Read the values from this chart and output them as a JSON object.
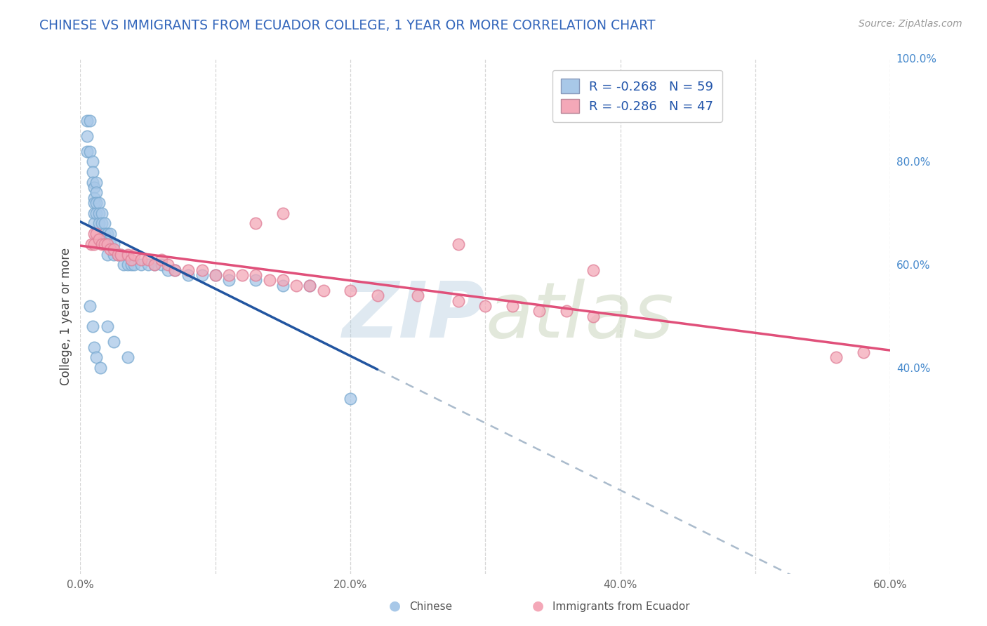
{
  "title": "CHINESE VS IMMIGRANTS FROM ECUADOR COLLEGE, 1 YEAR OR MORE CORRELATION CHART",
  "source_text": "Source: ZipAtlas.com",
  "ylabel": "College, 1 year or more",
  "legend_labels": [
    "Chinese",
    "Immigrants from Ecuador"
  ],
  "legend_r": [
    -0.268,
    -0.286
  ],
  "legend_n": [
    59,
    47
  ],
  "xlim": [
    0.0,
    0.6
  ],
  "ylim": [
    0.0,
    1.0
  ],
  "blue_color": "#a8c8e8",
  "pink_color": "#f4a8b8",
  "blue_edge_color": "#7aaad0",
  "pink_edge_color": "#e08098",
  "blue_line_color": "#2255a0",
  "pink_line_color": "#e0507a",
  "dash_color": "#aabbcc",
  "background_color": "#ffffff",
  "chinese_x": [
    0.005,
    0.005,
    0.005,
    0.007,
    0.007,
    0.009,
    0.009,
    0.009,
    0.01,
    0.01,
    0.01,
    0.01,
    0.01,
    0.012,
    0.012,
    0.012,
    0.012,
    0.014,
    0.014,
    0.014,
    0.016,
    0.016,
    0.018,
    0.018,
    0.02,
    0.02,
    0.02,
    0.022,
    0.022,
    0.025,
    0.025,
    0.028,
    0.03,
    0.032,
    0.035,
    0.038,
    0.04,
    0.045,
    0.05,
    0.055,
    0.06,
    0.065,
    0.07,
    0.08,
    0.09,
    0.1,
    0.11,
    0.13,
    0.15,
    0.17,
    0.007,
    0.009,
    0.01,
    0.012,
    0.015,
    0.02,
    0.025,
    0.035,
    0.2
  ],
  "chinese_y": [
    0.88,
    0.85,
    0.82,
    0.88,
    0.82,
    0.8,
    0.78,
    0.76,
    0.75,
    0.73,
    0.72,
    0.7,
    0.68,
    0.76,
    0.74,
    0.72,
    0.7,
    0.72,
    0.7,
    0.68,
    0.7,
    0.68,
    0.68,
    0.66,
    0.66,
    0.64,
    0.62,
    0.66,
    0.64,
    0.64,
    0.62,
    0.62,
    0.62,
    0.6,
    0.6,
    0.6,
    0.6,
    0.6,
    0.6,
    0.6,
    0.6,
    0.59,
    0.59,
    0.58,
    0.58,
    0.58,
    0.57,
    0.57,
    0.56,
    0.56,
    0.52,
    0.48,
    0.44,
    0.42,
    0.4,
    0.48,
    0.45,
    0.42,
    0.34
  ],
  "ecuador_x": [
    0.008,
    0.01,
    0.01,
    0.012,
    0.014,
    0.016,
    0.018,
    0.02,
    0.022,
    0.025,
    0.028,
    0.03,
    0.035,
    0.038,
    0.04,
    0.045,
    0.05,
    0.055,
    0.06,
    0.065,
    0.07,
    0.08,
    0.09,
    0.1,
    0.11,
    0.12,
    0.13,
    0.14,
    0.15,
    0.16,
    0.17,
    0.18,
    0.2,
    0.22,
    0.25,
    0.28,
    0.3,
    0.32,
    0.34,
    0.36,
    0.38,
    0.13,
    0.15,
    0.28,
    0.38,
    0.56,
    0.58
  ],
  "ecuador_y": [
    0.64,
    0.66,
    0.64,
    0.66,
    0.65,
    0.64,
    0.64,
    0.64,
    0.63,
    0.63,
    0.62,
    0.62,
    0.62,
    0.61,
    0.62,
    0.61,
    0.61,
    0.6,
    0.61,
    0.6,
    0.59,
    0.59,
    0.59,
    0.58,
    0.58,
    0.58,
    0.58,
    0.57,
    0.57,
    0.56,
    0.56,
    0.55,
    0.55,
    0.54,
    0.54,
    0.53,
    0.52,
    0.52,
    0.51,
    0.51,
    0.5,
    0.68,
    0.7,
    0.64,
    0.59,
    0.42,
    0.43
  ]
}
